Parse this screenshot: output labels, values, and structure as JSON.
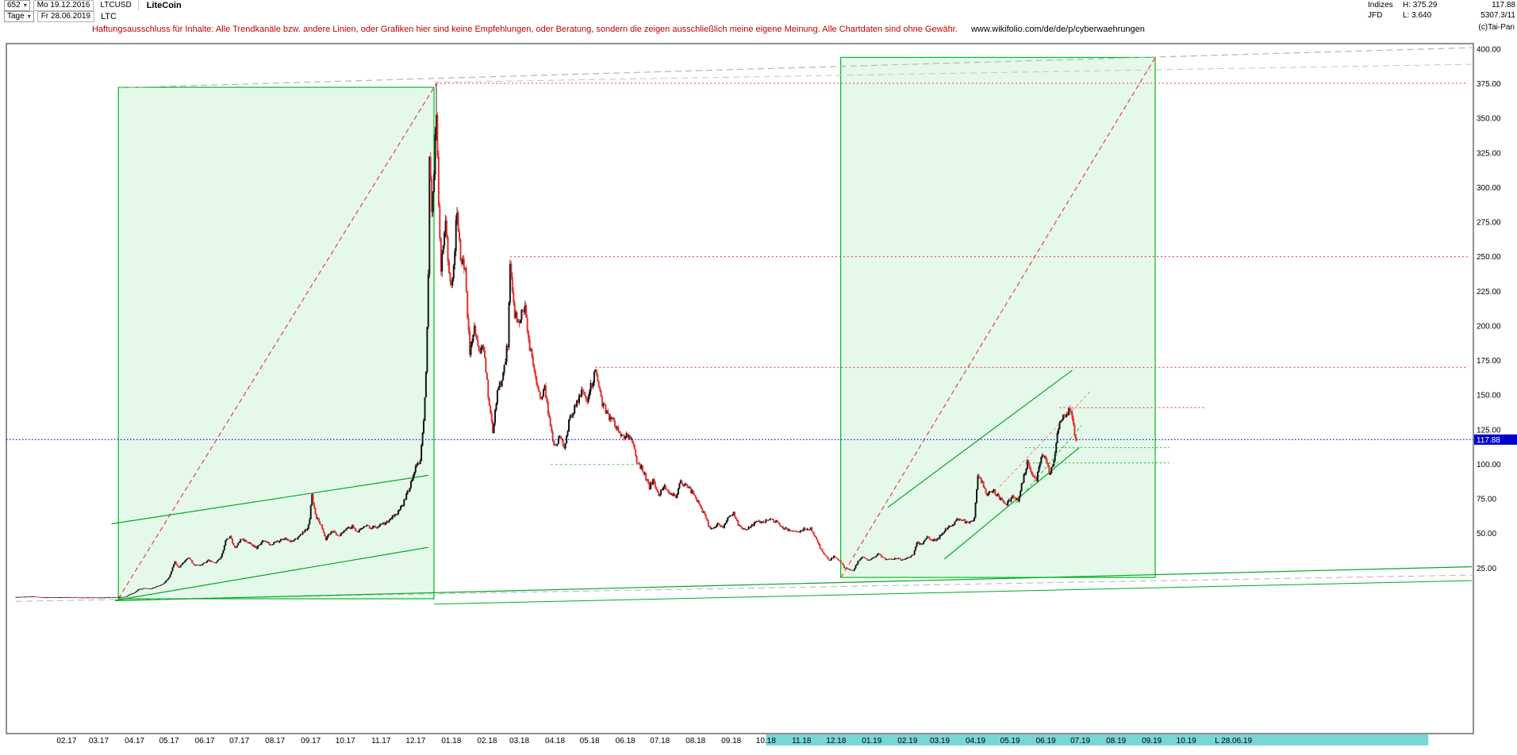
{
  "window": {
    "toolbar": {
      "bars_count": "652",
      "start_day": "Mo 19.12.2016",
      "symbol": "LTCUSD",
      "name": "LiteCoin",
      "period": "Tage",
      "end_day": "Fr 28.06.2019",
      "ticker": "LTC"
    },
    "info_panel": {
      "provider": "Indizes",
      "feed": "JFD",
      "high_label": "H: 375.29",
      "low_label": "L: 3.640",
      "last": "117.88",
      "turnover": "5307.3/11",
      "copyright": "(c)Tai-Pan"
    },
    "disclaimer": {
      "text": "Haftungsausschluss für Inhalte: Alle Trendkanäle bzw. andere Linien, oder Grafiken hier sind keine Empfehlungen, oder Beratung, sondern die zeigen ausschließlich meine eigene Meinung. Alle Chartdaten sind ohne Gewähr.",
      "link": "www.wikifolio.com/de/de/p/cyberwaehrungen"
    }
  },
  "chart_data": {
    "type": "candlestick",
    "symbol": "LTCUSD",
    "title": "LiteCoin",
    "timeframe": "Tage",
    "period_high": 375.29,
    "period_high_date": "2017-12-19",
    "period_low": 3.64,
    "period_low_date": "2017-02-26",
    "current": {
      "price": 117.88,
      "label": "117.88"
    },
    "y_axis": {
      "unit": "USD",
      "ticks": [
        "400.00",
        "375.00",
        "350.00",
        "325.00",
        "300.00",
        "275.00",
        "250.00",
        "225.00",
        "200.00",
        "175.00",
        "150.00",
        "125.00",
        "100.00",
        "75.00",
        "50.00",
        "25.00"
      ]
    },
    "x_axis": {
      "epoch": "2016-12-19",
      "first_month": "2017-02-01",
      "month_labels": [
        "02.17",
        "03.17",
        "04.17",
        "05.17",
        "06.17",
        "07.17",
        "08.17",
        "09.17",
        "10.17",
        "11.17",
        "12.17",
        "01.18",
        "02.18",
        "03.18",
        "04.18",
        "05.18",
        "06.18",
        "07.18",
        "08.18",
        "09.18",
        "10.18",
        "11.18",
        "12.18",
        "01.19",
        "02.19",
        "03.19",
        "04.19",
        "05.19",
        "06.19",
        "07.19",
        "08.19",
        "09.19",
        "10.19"
      ],
      "last_marker": "L  28.06.19",
      "scrollbar": {
        "from": "2018-10-01",
        "to": "2020-04-28",
        "color": "#79d6d6"
      }
    },
    "price_path": [
      [
        "2016-12-19",
        4.1
      ],
      [
        "2016-12-27",
        4.35
      ],
      [
        "2017-01-04",
        4.5
      ],
      [
        "2017-01-11",
        3.85
      ],
      [
        "2017-01-19",
        3.95
      ],
      [
        "2017-01-28",
        3.9
      ],
      [
        "2017-02-05",
        3.95
      ],
      [
        "2017-02-14",
        3.8
      ],
      [
        "2017-02-24",
        3.7
      ],
      [
        "2017-03-03",
        3.75
      ],
      [
        "2017-03-10",
        3.9
      ],
      [
        "2017-03-18",
        4.0
      ],
      [
        "2017-03-24",
        4.2
      ],
      [
        "2017-03-28",
        6.1
      ],
      [
        "2017-04-01",
        7.3
      ],
      [
        "2017-04-05",
        9.9
      ],
      [
        "2017-04-10",
        10.4
      ],
      [
        "2017-04-15",
        10.1
      ],
      [
        "2017-04-20",
        11.6
      ],
      [
        "2017-04-26",
        13.8
      ],
      [
        "2017-05-01",
        18.5
      ],
      [
        "2017-05-06",
        29.8
      ],
      [
        "2017-05-09",
        25.2
      ],
      [
        "2017-05-13",
        28.6
      ],
      [
        "2017-05-18",
        32.8
      ],
      [
        "2017-05-23",
        26.8
      ],
      [
        "2017-05-29",
        27.6
      ],
      [
        "2017-06-04",
        30.5
      ],
      [
        "2017-06-10",
        28.8
      ],
      [
        "2017-06-15",
        33.0
      ],
      [
        "2017-06-19",
        44.5
      ],
      [
        "2017-06-23",
        47.6
      ],
      [
        "2017-06-27",
        39.2
      ],
      [
        "2017-07-03",
        46.2
      ],
      [
        "2017-07-09",
        43.6
      ],
      [
        "2017-07-16",
        39.6
      ],
      [
        "2017-07-22",
        45.4
      ],
      [
        "2017-07-28",
        42.0
      ],
      [
        "2017-08-03",
        44.0
      ],
      [
        "2017-08-09",
        46.5
      ],
      [
        "2017-08-16",
        44.2
      ],
      [
        "2017-08-23",
        48.5
      ],
      [
        "2017-08-29",
        54.0
      ],
      [
        "2017-08-31",
        61.5
      ],
      [
        "2017-09-02",
        77.5
      ],
      [
        "2017-09-05",
        63.0
      ],
      [
        "2017-09-09",
        57.5
      ],
      [
        "2017-09-14",
        46.0
      ],
      [
        "2017-09-19",
        52.5
      ],
      [
        "2017-09-25",
        48.0
      ],
      [
        "2017-10-01",
        53.0
      ],
      [
        "2017-10-07",
        55.0
      ],
      [
        "2017-10-12",
        50.8
      ],
      [
        "2017-10-18",
        55.8
      ],
      [
        "2017-10-24",
        54.2
      ],
      [
        "2017-10-30",
        55.5
      ],
      [
        "2017-11-05",
        57.5
      ],
      [
        "2017-11-10",
        61.5
      ],
      [
        "2017-11-15",
        64.5
      ],
      [
        "2017-11-20",
        71.5
      ],
      [
        "2017-11-26",
        84.0
      ],
      [
        "2017-12-01",
        98.0
      ],
      [
        "2017-12-05",
        102.0
      ],
      [
        "2017-12-08",
        131.0
      ],
      [
        "2017-12-10",
        165.0
      ],
      [
        "2017-12-12",
        235.0
      ],
      [
        "2017-12-13",
        320.0
      ],
      [
        "2017-12-15",
        284.0
      ],
      [
        "2017-12-17",
        310.0
      ],
      [
        "2017-12-19",
        358.0
      ],
      [
        "2017-12-21",
        288.0
      ],
      [
        "2017-12-23",
        244.0
      ],
      [
        "2017-12-27",
        271.0
      ],
      [
        "2017-12-31",
        228.0
      ],
      [
        "2018-01-03",
        244.0
      ],
      [
        "2018-01-06",
        285.0
      ],
      [
        "2018-01-09",
        248.0
      ],
      [
        "2018-01-13",
        240.0
      ],
      [
        "2018-01-17",
        178.0
      ],
      [
        "2018-01-21",
        197.0
      ],
      [
        "2018-01-25",
        181.0
      ],
      [
        "2018-01-29",
        183.0
      ],
      [
        "2018-02-02",
        150.0
      ],
      [
        "2018-02-06",
        123.0
      ],
      [
        "2018-02-10",
        153.0
      ],
      [
        "2018-02-15",
        164.0
      ],
      [
        "2018-02-19",
        188.0
      ],
      [
        "2018-02-21",
        240.0
      ],
      [
        "2018-02-25",
        207.0
      ],
      [
        "2018-03-01",
        203.0
      ],
      [
        "2018-03-06",
        215.0
      ],
      [
        "2018-03-10",
        184.0
      ],
      [
        "2018-03-15",
        163.0
      ],
      [
        "2018-03-19",
        147.0
      ],
      [
        "2018-03-23",
        154.0
      ],
      [
        "2018-03-27",
        132.0
      ],
      [
        "2018-03-31",
        114.0
      ],
      [
        "2018-04-05",
        119.0
      ],
      [
        "2018-04-09",
        112.5
      ],
      [
        "2018-04-13",
        130.0
      ],
      [
        "2018-04-18",
        141.0
      ],
      [
        "2018-04-24",
        152.0
      ],
      [
        "2018-04-29",
        146.0
      ],
      [
        "2018-05-03",
        159.0
      ],
      [
        "2018-05-06",
        167.0
      ],
      [
        "2018-05-11",
        146.0
      ],
      [
        "2018-05-16",
        137.0
      ],
      [
        "2018-05-22",
        130.0
      ],
      [
        "2018-05-28",
        119.5
      ],
      [
        "2018-06-02",
        121.5
      ],
      [
        "2018-06-07",
        116.0
      ],
      [
        "2018-06-11",
        101.5
      ],
      [
        "2018-06-16",
        96.5
      ],
      [
        "2018-06-22",
        83.5
      ],
      [
        "2018-06-25",
        89.0
      ],
      [
        "2018-06-30",
        78.0
      ],
      [
        "2018-07-05",
        84.5
      ],
      [
        "2018-07-10",
        79.5
      ],
      [
        "2018-07-15",
        76.5
      ],
      [
        "2018-07-19",
        87.5
      ],
      [
        "2018-07-25",
        84.0
      ],
      [
        "2018-07-31",
        77.5
      ],
      [
        "2018-08-05",
        70.0
      ],
      [
        "2018-08-09",
        63.0
      ],
      [
        "2018-08-12",
        56.5
      ],
      [
        "2018-08-15",
        53.0
      ],
      [
        "2018-08-20",
        57.0
      ],
      [
        "2018-08-25",
        55.0
      ],
      [
        "2018-08-30",
        62.5
      ],
      [
        "2018-09-03",
        65.0
      ],
      [
        "2018-09-07",
        55.5
      ],
      [
        "2018-09-13",
        52.5
      ],
      [
        "2018-09-18",
        55.0
      ],
      [
        "2018-09-23",
        59.5
      ],
      [
        "2018-09-28",
        58.0
      ],
      [
        "2018-10-04",
        60.5
      ],
      [
        "2018-10-10",
        58.5
      ],
      [
        "2018-10-16",
        54.0
      ],
      [
        "2018-10-22",
        52.5
      ],
      [
        "2018-10-29",
        51.5
      ],
      [
        "2018-11-04",
        53.5
      ],
      [
        "2018-11-09",
        54.0
      ],
      [
        "2018-11-14",
        45.0
      ],
      [
        "2018-11-19",
        36.5
      ],
      [
        "2018-11-25",
        30.5
      ],
      [
        "2018-11-29",
        33.5
      ],
      [
        "2018-12-04",
        30.5
      ],
      [
        "2018-12-08",
        25.5
      ],
      [
        "2018-12-12",
        24.2
      ],
      [
        "2018-12-16",
        23.4
      ],
      [
        "2018-12-20",
        30.0
      ],
      [
        "2018-12-24",
        33.5
      ],
      [
        "2018-12-29",
        30.5
      ],
      [
        "2019-01-03",
        32.5
      ],
      [
        "2019-01-07",
        35.5
      ],
      [
        "2019-01-12",
        31.5
      ],
      [
        "2019-01-17",
        31.0
      ],
      [
        "2019-01-22",
        32.0
      ],
      [
        "2019-01-28",
        31.0
      ],
      [
        "2019-02-02",
        33.0
      ],
      [
        "2019-02-06",
        34.5
      ],
      [
        "2019-02-09",
        44.0
      ],
      [
        "2019-02-13",
        41.5
      ],
      [
        "2019-02-18",
        47.5
      ],
      [
        "2019-02-23",
        45.0
      ],
      [
        "2019-02-28",
        46.5
      ],
      [
        "2019-03-05",
        52.5
      ],
      [
        "2019-03-10",
        55.5
      ],
      [
        "2019-03-16",
        60.0
      ],
      [
        "2019-03-21",
        59.0
      ],
      [
        "2019-03-27",
        57.5
      ],
      [
        "2019-03-31",
        61.0
      ],
      [
        "2019-04-03",
        92.0
      ],
      [
        "2019-04-08",
        84.5
      ],
      [
        "2019-04-11",
        78.5
      ],
      [
        "2019-04-17",
        80.5
      ],
      [
        "2019-04-23",
        75.0
      ],
      [
        "2019-04-28",
        71.5
      ],
      [
        "2019-05-03",
        76.5
      ],
      [
        "2019-05-08",
        74.0
      ],
      [
        "2019-05-12",
        88.5
      ],
      [
        "2019-05-16",
        101.5
      ],
      [
        "2019-05-20",
        91.5
      ],
      [
        "2019-05-24",
        89.5
      ],
      [
        "2019-05-28",
        103.5
      ],
      [
        "2019-05-31",
        108.0
      ],
      [
        "2019-06-04",
        93.5
      ],
      [
        "2019-06-08",
        101.0
      ],
      [
        "2019-06-11",
        122.0
      ],
      [
        "2019-06-13",
        132.0
      ],
      [
        "2019-06-16",
        134.5
      ],
      [
        "2019-06-19",
        136.5
      ],
      [
        "2019-06-22",
        141.0
      ],
      [
        "2019-06-24",
        133.5
      ],
      [
        "2019-06-26",
        120.5
      ],
      [
        "2019-06-28",
        117.88
      ]
    ],
    "levels": [
      {
        "price": 375.3,
        "from": "2017-12-19",
        "to": "2020-06-01",
        "color": "#f04040",
        "dash": "2,3"
      },
      {
        "price": 250.0,
        "from": "2018-02-21",
        "to": "2020-06-01",
        "color": "#f04040",
        "dash": "2,3"
      },
      {
        "price": 170.0,
        "from": "2018-05-06",
        "to": "2020-06-01",
        "color": "#f04040",
        "dash": "2,3"
      },
      {
        "price": 141.0,
        "from": "2019-06-13",
        "to": "2019-10-18",
        "color": "#f04040",
        "dash": "2,3"
      },
      {
        "price": 112.0,
        "from": "2019-05-14",
        "to": "2019-09-16",
        "color": "#33bb33",
        "dash": "2,3"
      },
      {
        "price": 101.0,
        "from": "2019-05-14",
        "to": "2019-09-16",
        "color": "#33bb33",
        "dash": "2,3"
      },
      {
        "price": 100.0,
        "from": "2018-03-28",
        "to": "2018-06-12",
        "color": "#66cc66",
        "dash": "3,3"
      }
    ],
    "trendlines": [
      {
        "d1": "2017-03-18",
        "p1": 3,
        "d2": "2017-12-19",
        "p2": 375,
        "color": "#f04040",
        "dash": "6,4",
        "w": 1.2
      },
      {
        "d1": "2018-12-05",
        "p1": 18,
        "d2": "2019-09-04",
        "p2": 394,
        "color": "#f04040",
        "dash": "6,4",
        "w": 1.2
      },
      {
        "d1": "2019-04-22",
        "p1": 84,
        "d2": "2019-07-10",
        "p2": 153,
        "color": "#f28080",
        "dash": "4,3",
        "w": 1
      },
      {
        "d1": "2017-03-18",
        "p1": 372,
        "d2": "2020-06-05",
        "p2": 401,
        "color": "#b5b5b5",
        "dash": "8,5",
        "w": 1.2
      },
      {
        "d1": "2017-12-17",
        "p1": 376,
        "d2": "2020-06-05",
        "p2": 389,
        "color": "#c4c4c4",
        "dash": "8,5",
        "w": 1
      },
      {
        "d1": "2016-12-19",
        "p1": 1.0,
        "d2": "2020-06-05",
        "p2": 20,
        "color": "#b5b5b5",
        "dash": "8,5",
        "w": 1
      },
      {
        "d1": "2017-03-15",
        "p1": 1.5,
        "d2": "2020-06-05",
        "p2": 26,
        "color": "#00aa22",
        "w": 1.2
      },
      {
        "d1": "2017-12-17",
        "p1": -1,
        "d2": "2020-06-05",
        "p2": 16,
        "color": "#00aa22",
        "w": 1
      },
      {
        "d1": "2017-03-15",
        "p1": 1.7,
        "d2": "2017-12-12",
        "p2": 40,
        "color": "#00aa22",
        "w": 1.2
      },
      {
        "d1": "2017-03-12",
        "p1": 57,
        "d2": "2017-12-12",
        "p2": 92,
        "color": "#00aa22",
        "w": 1.2
      },
      {
        "d1": "2019-01-15",
        "p1": 69,
        "d2": "2019-06-24",
        "p2": 168,
        "color": "#00aa22",
        "w": 1.2
      },
      {
        "d1": "2019-03-05",
        "p1": 31.5,
        "d2": "2019-06-30",
        "p2": 112,
        "color": "#00aa22",
        "w": 1.2
      },
      {
        "d1": "2019-05-06",
        "p1": 72,
        "d2": "2019-07-02",
        "p2": 128,
        "color": "#33bb33",
        "dash": "4,3",
        "w": 1
      }
    ],
    "boxes": [
      {
        "from": "2017-03-18",
        "to": "2017-12-17",
        "low": 2.9,
        "high": 372.4,
        "stroke": "#00bb22",
        "fill": "rgba(0,200,60,0.10)"
      },
      {
        "from": "2018-12-05",
        "to": "2019-09-04",
        "low": 18.3,
        "high": 394.0,
        "stroke": "#00bb22",
        "fill": "rgba(0,200,60,0.10)"
      }
    ]
  },
  "render": {
    "seed": 20190628,
    "jitter": 0.02,
    "wick": 0.016,
    "up_color": "#141414",
    "down_color": "#e03131",
    "accent_blue": "#0000cc"
  }
}
